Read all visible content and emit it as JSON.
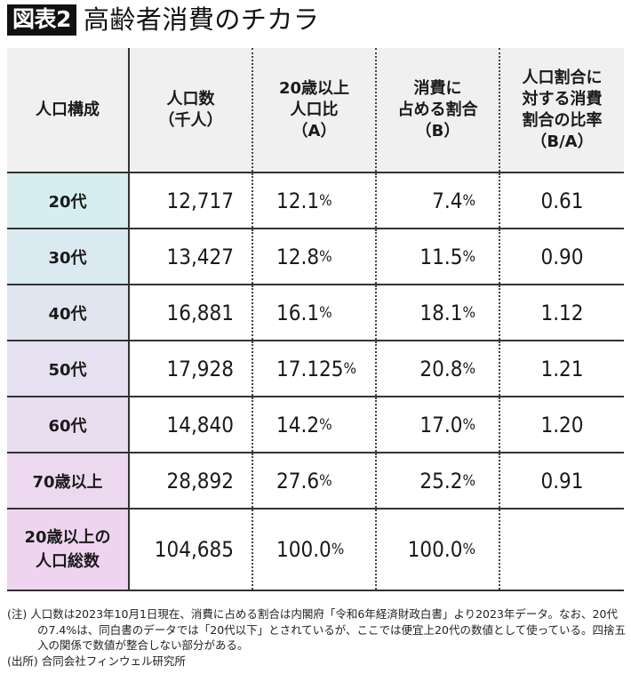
{
  "figure": {
    "badge": "図表2",
    "title": "高齢者消費のチカラ"
  },
  "table": {
    "headers": [
      "人口構成",
      "人口数\n（千人）",
      "20歳以上\n人口比\n（A）",
      "消費に\n占める割合\n（B）",
      "人口割合に\n対する消費\n割合の比率\n（B/A）"
    ],
    "rows": [
      {
        "group": "20代",
        "population": "12,717",
        "pop_ratio": "12.1",
        "consumption_share": "7.4",
        "ratio": "0.61",
        "color": "#d6eef0"
      },
      {
        "group": "30代",
        "population": "13,427",
        "pop_ratio": "12.8",
        "consumption_share": "11.5",
        "ratio": "0.90",
        "color": "#dbe9f0"
      },
      {
        "group": "40代",
        "population": "16,881",
        "pop_ratio": "16.1",
        "consumption_share": "18.1",
        "ratio": "1.12",
        "color": "#e0e5f0"
      },
      {
        "group": "50代",
        "population": "17,928",
        "pop_ratio": "17.125",
        "consumption_share": "20.8",
        "ratio": "1.21",
        "color": "#e5e1f0"
      },
      {
        "group": "60代",
        "population": "14,840",
        "pop_ratio": "14.2",
        "consumption_share": "17.0",
        "ratio": "1.20",
        "color": "#e9ddf0"
      },
      {
        "group": "70歳以上",
        "population": "28,892",
        "pop_ratio": "27.6",
        "consumption_share": "25.2",
        "ratio": "0.91",
        "color": "#ecd9f0"
      }
    ],
    "total": {
      "group": "20歳以上の\n人口総数",
      "population": "104,685",
      "pop_ratio": "100.0",
      "consumption_share": "100.0",
      "ratio": "",
      "color": "#efd4ef"
    },
    "percent_sign": "%"
  },
  "notes": {
    "note_line1": "(注) 人口数は2023年10月1日現在、消費に占める割合は内閣府「令和6年経済財政白書」より2023年データ。なお、20代",
    "note_line2": "の7.4%は、同白書のデータでは「20代以下」とされているが、ここでは便宜上20代の数値として使っている。四捨五",
    "note_line3": "入の関係で数値が整合しない部分がある。",
    "source": "(出所) 合同会社フィンウェル研究所"
  },
  "chart_data": {
    "type": "table",
    "title": "高齢者消費のチカラ",
    "columns": [
      "人口構成",
      "人口数（千人）",
      "20歳以上人口比（A）",
      "消費に占める割合（B）",
      "人口割合に対する消費割合の比率（B/A）"
    ],
    "rows": [
      [
        "20代",
        12717,
        12.1,
        7.4,
        0.61
      ],
      [
        "30代",
        13427,
        12.8,
        11.5,
        0.9
      ],
      [
        "40代",
        16881,
        16.1,
        18.1,
        1.12
      ],
      [
        "50代",
        17928,
        17.125,
        20.8,
        1.21
      ],
      [
        "60代",
        14840,
        14.2,
        17.0,
        1.2
      ],
      [
        "70歳以上",
        28892,
        27.6,
        25.2,
        0.91
      ],
      [
        "20歳以上の人口総数",
        104685,
        100.0,
        100.0,
        null
      ]
    ]
  }
}
